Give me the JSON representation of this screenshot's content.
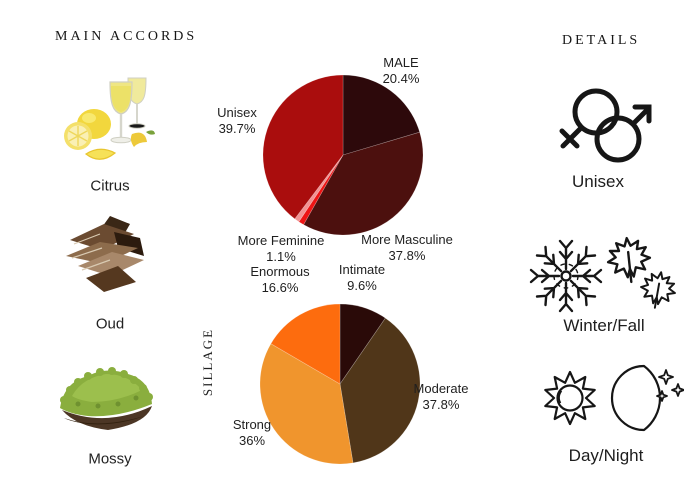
{
  "headers": {
    "left": "MAIN ACCORDS",
    "right": "DETAILS"
  },
  "accords": {
    "items": [
      {
        "name": "Citrus",
        "image": "lemons-and-glasses-illustration"
      },
      {
        "name": "Oud",
        "image": "oud-wood-chips-illustration"
      },
      {
        "name": "Mossy",
        "image": "green-moss-illustration"
      }
    ]
  },
  "details": {
    "items": [
      {
        "label": "Unisex",
        "icon": "unisex-gender-icon"
      },
      {
        "label": "Winter/Fall",
        "icon": "snowflake-maple-leaves-icon"
      },
      {
        "label": "Day/Night",
        "icon": "sun-moon-icon"
      }
    ]
  },
  "chart_data": [
    {
      "type": "pie",
      "name": "gender-votes",
      "start_angle": "top",
      "direction": "clockwise",
      "slices": [
        {
          "label": "MALE",
          "pct": "20.4%",
          "value": 20.4,
          "color": "#2d090b"
        },
        {
          "label": "More Masculine",
          "pct": "37.8%",
          "value": 37.8,
          "color": "#4c100e"
        },
        {
          "label": "More Feminine",
          "pct": "1.1%",
          "value": 1.1,
          "color": "#ee1414"
        },
        {
          "label": "",
          "pct": "",
          "value": 1.0,
          "color": "#f29292"
        },
        {
          "label": "Unisex",
          "pct": "39.7%",
          "value": 39.7,
          "color": "#aa0d0d"
        }
      ]
    },
    {
      "type": "pie",
      "name": "sillage-votes",
      "axis_label": "SILLAGE",
      "start_angle": "top",
      "direction": "clockwise",
      "slices": [
        {
          "label": "Intimate",
          "pct": "9.6%",
          "value": 9.6,
          "color": "#2a0a08"
        },
        {
          "label": "Moderate",
          "pct": "37.8%",
          "value": 37.8,
          "color": "#503619"
        },
        {
          "label": "Strong",
          "pct": "36%",
          "value": 36.0,
          "color": "#f0952d"
        },
        {
          "label": "Enormous",
          "pct": "16.6%",
          "value": 16.6,
          "color": "#fd6c0e"
        }
      ]
    }
  ]
}
